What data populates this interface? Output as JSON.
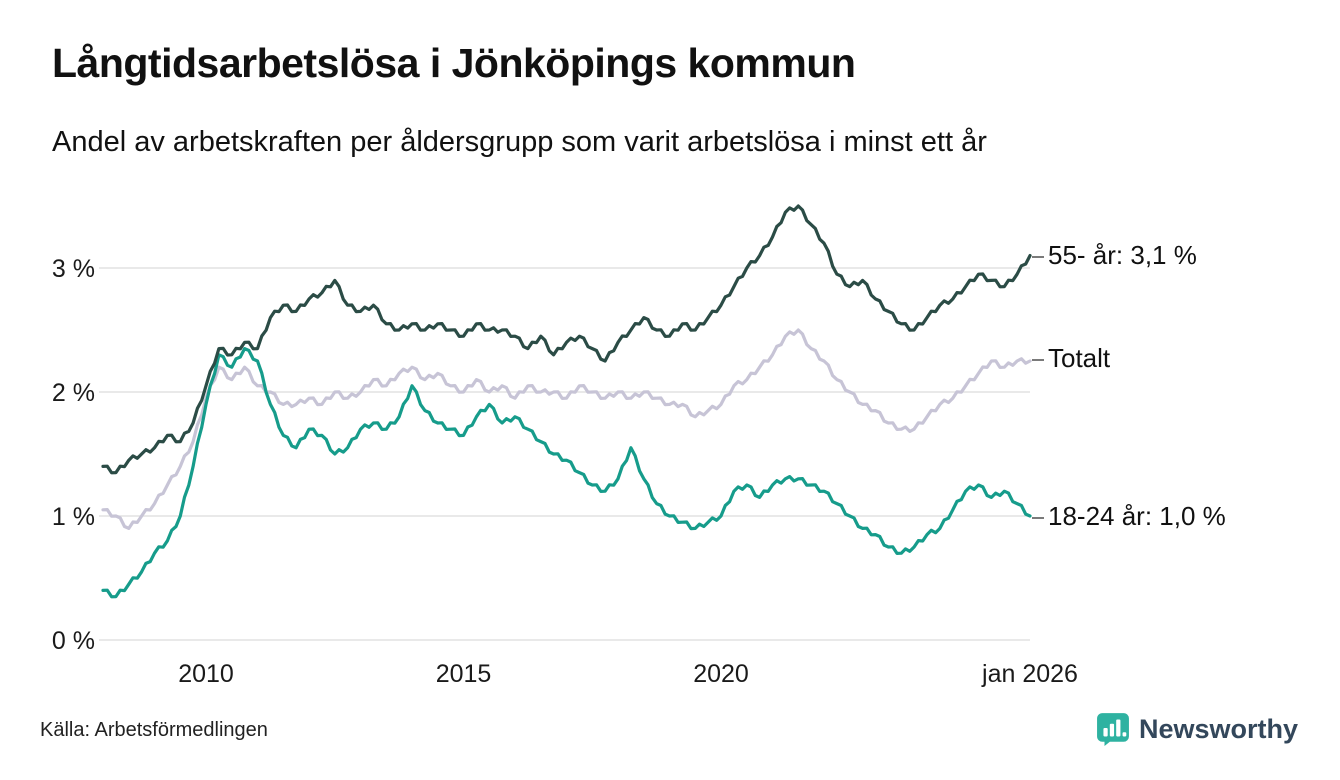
{
  "page": {
    "title": "Långtidsarbetslösa i Jönköpings kommun",
    "subtitle": "Andel av arbetskraften per åldersgrupp som varit arbetslösa i minst ett år",
    "source": "Källa: Arbetsförmedlingen",
    "brand": {
      "name": "Newsworthy",
      "icon": "newsworthy-chart-pin-icon",
      "icon_color": "#2EB2A1",
      "text_color": "#33475B"
    }
  },
  "chart_data": {
    "type": "line",
    "title": "Långtidsarbetslösa i Jönköpings kommun",
    "subtitle": "Andel av arbetskraften per åldersgrupp som varit arbetslösa i minst ett år",
    "xlabel": "",
    "ylabel": "",
    "grid": "horizontal",
    "legend_position": "right-end-labels",
    "x_range": [
      2008,
      2026
    ],
    "ylim": [
      0,
      3.6
    ],
    "yticks": [
      {
        "value": 0,
        "label": "0 %"
      },
      {
        "value": 1,
        "label": "1 %"
      },
      {
        "value": 2,
        "label": "2 %"
      },
      {
        "value": 3,
        "label": "3 %"
      }
    ],
    "xticks": [
      {
        "value": 2010,
        "label": "2010"
      },
      {
        "value": 2015,
        "label": "2015"
      },
      {
        "value": 2020,
        "label": "2020"
      },
      {
        "value": 2026,
        "label": "jan 2026"
      }
    ],
    "x": [
      2008,
      2008.25,
      2008.5,
      2008.75,
      2009,
      2009.25,
      2009.5,
      2009.75,
      2010,
      2010.25,
      2010.5,
      2010.75,
      2011,
      2011.25,
      2011.5,
      2011.75,
      2012,
      2012.25,
      2012.5,
      2012.75,
      2013,
      2013.25,
      2013.5,
      2013.75,
      2014,
      2014.25,
      2014.5,
      2014.75,
      2015,
      2015.25,
      2015.5,
      2015.75,
      2016,
      2016.25,
      2016.5,
      2016.75,
      2017,
      2017.25,
      2017.5,
      2017.75,
      2018,
      2018.25,
      2018.5,
      2018.75,
      2019,
      2019.25,
      2019.5,
      2019.75,
      2020,
      2020.25,
      2020.5,
      2020.75,
      2021,
      2021.25,
      2021.5,
      2021.75,
      2022,
      2022.25,
      2022.5,
      2022.75,
      2023,
      2023.25,
      2023.5,
      2023.75,
      2024,
      2024.25,
      2024.5,
      2024.75,
      2025,
      2025.25,
      2025.5,
      2025.75,
      2026
    ],
    "series": [
      {
        "name": "55- år",
        "end_label": "55- år: 3,1 %",
        "last_value": 3.1,
        "color": "#2B4C46",
        "values": [
          1.4,
          1.35,
          1.45,
          1.5,
          1.55,
          1.65,
          1.6,
          1.75,
          2.05,
          2.35,
          2.3,
          2.4,
          2.35,
          2.6,
          2.7,
          2.65,
          2.75,
          2.8,
          2.9,
          2.7,
          2.65,
          2.7,
          2.55,
          2.5,
          2.55,
          2.5,
          2.55,
          2.5,
          2.45,
          2.55,
          2.5,
          2.5,
          2.45,
          2.35,
          2.45,
          2.3,
          2.4,
          2.45,
          2.35,
          2.25,
          2.4,
          2.5,
          2.6,
          2.5,
          2.45,
          2.55,
          2.5,
          2.6,
          2.7,
          2.85,
          3.0,
          3.1,
          3.25,
          3.45,
          3.5,
          3.35,
          3.2,
          2.95,
          2.85,
          2.9,
          2.75,
          2.65,
          2.55,
          2.5,
          2.6,
          2.7,
          2.75,
          2.85,
          2.95,
          2.9,
          2.85,
          2.95,
          3.1
        ]
      },
      {
        "name": "Totalt",
        "end_label": "Totalt",
        "last_value": 2.25,
        "color": "#C7C4D6",
        "values": [
          1.05,
          1.0,
          0.9,
          1.0,
          1.1,
          1.25,
          1.4,
          1.6,
          1.95,
          2.2,
          2.1,
          2.2,
          2.05,
          2.0,
          1.9,
          1.9,
          1.95,
          1.9,
          2.0,
          1.95,
          2.0,
          2.1,
          2.05,
          2.15,
          2.2,
          2.1,
          2.15,
          2.05,
          2.0,
          2.1,
          2.0,
          2.05,
          1.95,
          2.05,
          2.0,
          2.0,
          1.95,
          2.05,
          2.0,
          1.95,
          2.0,
          1.95,
          2.0,
          1.95,
          1.9,
          1.9,
          1.8,
          1.85,
          1.9,
          2.05,
          2.1,
          2.2,
          2.3,
          2.45,
          2.5,
          2.35,
          2.25,
          2.1,
          2.0,
          1.9,
          1.85,
          1.75,
          1.7,
          1.7,
          1.8,
          1.9,
          1.95,
          2.05,
          2.15,
          2.25,
          2.2,
          2.25,
          2.25
        ]
      },
      {
        "name": "18-24 år",
        "end_label": "18-24 år: 1,0 %",
        "last_value": 1.0,
        "color": "#169C8B",
        "values": [
          0.4,
          0.35,
          0.45,
          0.55,
          0.7,
          0.8,
          1.0,
          1.4,
          1.9,
          2.3,
          2.2,
          2.35,
          2.25,
          1.9,
          1.65,
          1.55,
          1.7,
          1.65,
          1.5,
          1.55,
          1.7,
          1.75,
          1.7,
          1.8,
          2.05,
          1.85,
          1.75,
          1.7,
          1.65,
          1.8,
          1.9,
          1.75,
          1.8,
          1.7,
          1.6,
          1.5,
          1.45,
          1.35,
          1.25,
          1.2,
          1.3,
          1.55,
          1.3,
          1.1,
          1.0,
          0.95,
          0.9,
          0.95,
          1.0,
          1.2,
          1.25,
          1.15,
          1.25,
          1.3,
          1.3,
          1.25,
          1.2,
          1.1,
          1.0,
          0.9,
          0.85,
          0.75,
          0.7,
          0.75,
          0.85,
          0.9,
          1.05,
          1.2,
          1.25,
          1.15,
          1.2,
          1.1,
          1.0
        ]
      }
    ]
  }
}
